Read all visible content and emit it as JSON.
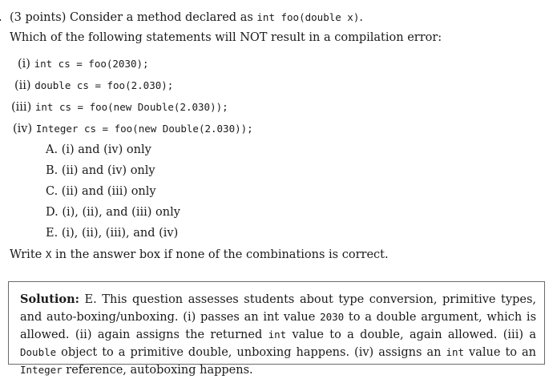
{
  "question": {
    "lead": ".",
    "header_text": "(3 points) Consider a method declared as ",
    "header_code": "int foo(double x)",
    "header_end": ".",
    "prompt": "Which of the following statements will NOT result in a compilation error:",
    "statements": [
      {
        "label": "(i)",
        "code": "int cs = foo(2030);"
      },
      {
        "label": "(ii)",
        "code": "double cs = foo(2.030);"
      },
      {
        "label": "(iii)",
        "code": "int cs = foo(new Double(2.030));"
      },
      {
        "label": "(iv)",
        "code": "Integer cs = foo(new Double(2.030));"
      }
    ],
    "options": [
      {
        "letter": "A.",
        "text": "(i) and (iv) only"
      },
      {
        "letter": "B.",
        "text": "(ii) and (iv) only"
      },
      {
        "letter": "C.",
        "text": "(ii) and (iii) only"
      },
      {
        "letter": "D.",
        "text": "(i), (ii), and (iii) only"
      },
      {
        "letter": "E.",
        "text": "(i), (ii), (iii), and (iv)"
      }
    ],
    "instruction_pre": "Write ",
    "instruction_code": "X",
    "instruction_post": " in the answer box if none of the combinations is correct."
  },
  "solution": {
    "label": "Solution:",
    "p1": " E. This question assesses students about type conversion, primitive types, and auto-boxing/unboxing. (i) passes an int value ",
    "c1": "2030",
    "p2": " to a double argument, which is allowed. (ii) again assigns the returned ",
    "c2": "int",
    "p3": " value to a double, again allowed. (iii) a ",
    "c3": "Double",
    "p4": " object to a primitive double, unboxing happens. (iv) assigns an ",
    "c4": "int",
    "p5": " value to an ",
    "c5": "Integer",
    "p6": " reference, autoboxing happens."
  }
}
